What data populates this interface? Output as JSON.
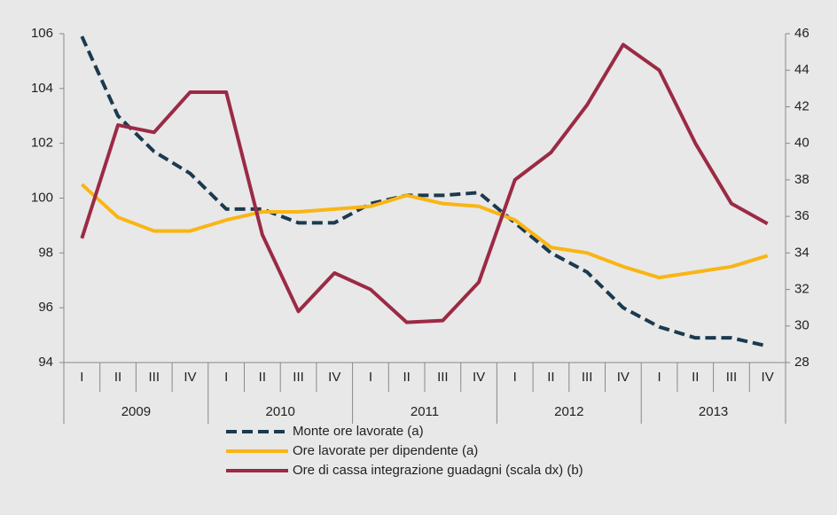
{
  "chart_data": {
    "type": "line",
    "categories": [
      "I",
      "II",
      "III",
      "IV",
      "I",
      "II",
      "III",
      "IV",
      "I",
      "II",
      "III",
      "IV",
      "I",
      "II",
      "III",
      "IV",
      "I",
      "II",
      "III",
      "IV"
    ],
    "years": [
      "2009",
      "2010",
      "2011",
      "2012",
      "2013"
    ],
    "series": [
      {
        "name": "Monte ore lavorate (a)",
        "color": "#1b3a4f",
        "dashed": true,
        "axis": "y",
        "values": [
          105.9,
          103.0,
          101.7,
          100.9,
          99.6,
          99.6,
          99.1,
          99.1,
          99.8,
          100.1,
          100.1,
          100.2,
          99.1,
          98.0,
          97.3,
          96.0,
          95.3,
          94.9,
          94.9,
          94.6
        ]
      },
      {
        "name": "Ore lavorate per dipendente (a)",
        "color": "#f9b515",
        "dashed": false,
        "axis": "y",
        "values": [
          100.5,
          99.3,
          98.8,
          98.8,
          99.2,
          99.5,
          99.5,
          99.6,
          99.7,
          100.1,
          99.8,
          99.7,
          99.2,
          98.2,
          98.0,
          97.5,
          97.1,
          97.3,
          97.5,
          97.9
        ]
      },
      {
        "name": "Ore di cassa integrazione guadagni (scala dx) (b)",
        "color": "#9b2a45",
        "dashed": false,
        "axis": "y2",
        "values": [
          34.8,
          41.0,
          40.6,
          42.8,
          42.8,
          35.0,
          30.8,
          32.9,
          32.0,
          30.2,
          30.3,
          32.4,
          38.0,
          39.5,
          42.1,
          45.4,
          44.0,
          40.0,
          36.7,
          35.6
        ]
      }
    ],
    "ylim": [
      94,
      106
    ],
    "yticks": [
      94,
      96,
      98,
      100,
      102,
      104,
      106
    ],
    "y2lim": [
      28,
      46
    ],
    "y2ticks": [
      28,
      30,
      32,
      34,
      36,
      38,
      40,
      42,
      44,
      46
    ]
  }
}
